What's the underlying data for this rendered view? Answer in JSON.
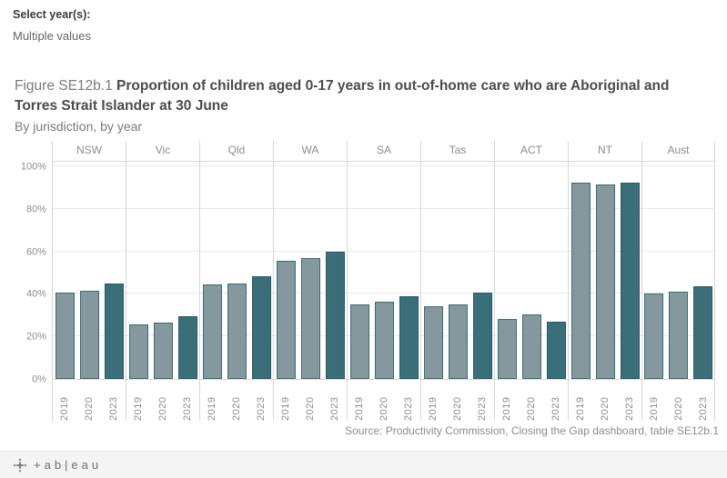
{
  "filter": {
    "label": "Select year(s):",
    "value": "Multiple values"
  },
  "title": {
    "prefix": "Figure SE12b.1",
    "main": "Proportion of children aged 0-17 years in out-of-home care who are Aboriginal and Torres Strait Islander at 30 June",
    "subtitle": "By jurisdiction, by year"
  },
  "source": "Source: Productivity Commission, Closing the Gap dashboard, table SE12b.1",
  "footer": {
    "logo_icon": "tableau-sparkle-icon",
    "logo_text": "+ab|eau"
  },
  "chart_data": {
    "type": "bar",
    "title": "Figure SE12b.1 Proportion of children aged 0-17 years in out-of-home care who are Aboriginal and Torres Strait Islander at 30 June",
    "subtitle": "By jurisdiction, by year",
    "categories": [
      "NSW",
      "Vic",
      "Qld",
      "WA",
      "SA",
      "Tas",
      "ACT",
      "NT",
      "Aust"
    ],
    "series": [
      {
        "name": "2019",
        "values": [
          40.5,
          25.5,
          44.5,
          55.5,
          35,
          34,
          28,
          92.5,
          40
        ]
      },
      {
        "name": "2020",
        "values": [
          41.5,
          26.5,
          45,
          57,
          36.5,
          35,
          30.5,
          91.5,
          41
        ]
      },
      {
        "name": "2023",
        "values": [
          45,
          29.5,
          48.5,
          60,
          39,
          40.5,
          27,
          92.5,
          43.5
        ]
      }
    ],
    "xlabel": "",
    "ylabel": "",
    "ylim": [
      0,
      100
    ],
    "yticks": [
      "0%",
      "20%",
      "40%",
      "60%",
      "80%",
      "100%"
    ],
    "grid": true,
    "legend": "none",
    "colors": {
      "2019": "#84989e",
      "2020": "#84989e",
      "2023": "#3a6e79"
    },
    "border_colors": {
      "2019": "#3d6b75",
      "2020": "#3d6b75",
      "2023": "#285a64"
    }
  }
}
